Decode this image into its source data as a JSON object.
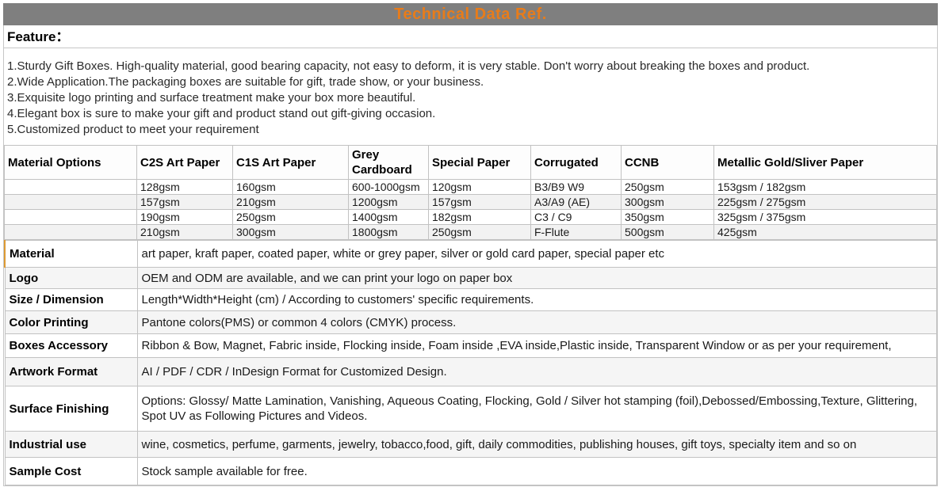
{
  "banner": {
    "title": "Technical Data Ref."
  },
  "feature": {
    "heading": "Feature：",
    "items": [
      "1.Sturdy Gift Boxes. High-quality material, good bearing capacity, not easy to deform, it is very stable. Don't worry about breaking the boxes and product.",
      "2.Wide Application.The packaging boxes are suitable for gift, trade show, or your business.",
      "3.Exquisite logo printing and surface treatment make your box more beautiful.",
      "4.Elegant box is sure to make your gift and product stand out gift-giving occasion.",
      "5.Customized product to meet your requirement"
    ]
  },
  "materials_table": {
    "headers": [
      "Material Options",
      "C2S Art Paper",
      "C1S Art Paper",
      "Grey Cardboard",
      "Special Paper",
      "Corrugated",
      "CCNB",
      "Metallic Gold/Sliver Paper"
    ],
    "rows": [
      [
        "",
        "128gsm",
        "160gsm",
        "600-1000gsm",
        "120gsm",
        "B3/B9 W9",
        "250gsm",
        "153gsm / 182gsm"
      ],
      [
        "",
        "157gsm",
        "210gsm",
        "1200gsm",
        "157gsm",
        "A3/A9 (AE)",
        "300gsm",
        "225gsm / 275gsm"
      ],
      [
        "",
        "190gsm",
        "250gsm",
        "1400gsm",
        "182gsm",
        "C3 / C9",
        "350gsm",
        "325gsm / 375gsm"
      ],
      [
        "",
        "210gsm",
        "300gsm",
        "1800gsm",
        "250gsm",
        "F-Flute",
        "500gsm",
        "425gsm"
      ]
    ]
  },
  "specs": [
    {
      "label": "Material",
      "value": "art paper, kraft paper, coated paper, white or grey paper, silver or gold card paper, special paper etc"
    },
    {
      "label": "Logo",
      "value": "OEM and ODM are available, and we can print your logo on paper box"
    },
    {
      "label": "Size / Dimension",
      "value": "Length*Width*Height (cm) / According to customers' specific requirements."
    },
    {
      "label": "Color Printing",
      "value": "Pantone colors(PMS) or common 4 colors (CMYK) process."
    },
    {
      "label": "Boxes Accessory",
      "value": "Ribbon & Bow, Magnet, Fabric inside, Flocking inside, Foam inside ,EVA inside,Plastic inside, Transparent Window or as per your requirement,"
    },
    {
      "label": "Artwork Format",
      "value": "AI / PDF / CDR / InDesign Format for Customized Design."
    },
    {
      "label": "Surface Finishing",
      "value": "Options: Glossy/ Matte Lamination, Vanishing, Aqueous Coating, Flocking, Gold / Silver hot stamping (foil),Debossed/Embossing,Texture, Glittering, Spot UV as Following Pictures and Videos."
    },
    {
      "label": "Industrial use",
      "value": "wine, cosmetics, perfume, garments, jewelry, tobacco,food, gift, daily commodities, publishing houses, gift toys, specialty item and so on"
    },
    {
      "label": "Sample Cost",
      "value": "Stock sample available for free."
    }
  ],
  "colors": {
    "banner_bg": "#7f7f7f",
    "banner_text": "#e87c1a",
    "stripe": "#f2f2f2",
    "border": "#c2c2c2",
    "accent_left_border": "#dd9a33"
  }
}
